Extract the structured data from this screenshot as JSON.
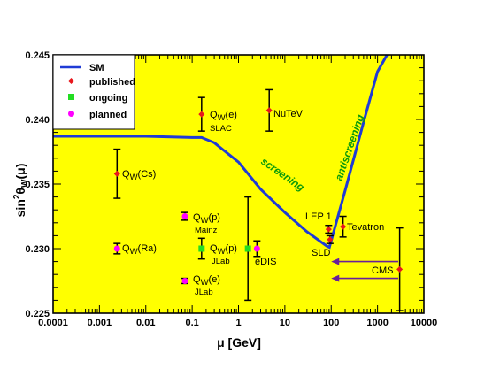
{
  "chart_data": {
    "type": "scatter",
    "xscale": "log",
    "xlim": [
      0.0001,
      10000
    ],
    "ylim": [
      0.225,
      0.245
    ],
    "xlabel": "μ [GeV]",
    "ylabel": {
      "main": "sin",
      "sup": "2",
      "theta": "θ",
      "sub": "W",
      "arg": "(μ)"
    },
    "xticks": [
      {
        "v": 0.0001,
        "label": "0.0001"
      },
      {
        "v": 0.001,
        "label": "0.001"
      },
      {
        "v": 0.01,
        "label": "0.01"
      },
      {
        "v": 0.1,
        "label": "0.1"
      },
      {
        "v": 1,
        "label": "1"
      },
      {
        "v": 10,
        "label": "10"
      },
      {
        "v": 100,
        "label": "100"
      },
      {
        "v": 1000,
        "label": "1000"
      },
      {
        "v": 10000,
        "label": "10000"
      }
    ],
    "yticks": [
      {
        "v": 0.225,
        "label": "0.225"
      },
      {
        "v": 0.23,
        "label": "0.230"
      },
      {
        "v": 0.235,
        "label": "0.235"
      },
      {
        "v": 0.24,
        "label": "0.240"
      },
      {
        "v": 0.245,
        "label": "0.245"
      }
    ],
    "background": "#ffff00",
    "legend": {
      "position": "top-left",
      "entries": [
        {
          "label": "SM",
          "kind": "line",
          "color": "#1f3bd6"
        },
        {
          "label": "published",
          "kind": "point",
          "color": "#e8171d"
        },
        {
          "label": "ongoing",
          "kind": "point",
          "color": "#22dd22"
        },
        {
          "label": "planned",
          "kind": "point",
          "color": "#ff00ff"
        }
      ]
    },
    "sm_curve": {
      "color": "#1f3bd6",
      "points": [
        [
          0.0001,
          0.2387
        ],
        [
          0.001,
          0.2387
        ],
        [
          0.01,
          0.2387
        ],
        [
          0.1,
          0.2386
        ],
        [
          0.16,
          0.2386
        ],
        [
          0.3,
          0.2382
        ],
        [
          1.0,
          0.2367
        ],
        [
          3.0,
          0.2346
        ],
        [
          10.0,
          0.2328
        ],
        [
          30.0,
          0.2313
        ],
        [
          80.0,
          0.2302
        ],
        [
          91.2,
          0.2301
        ],
        [
          200.0,
          0.2345
        ],
        [
          500.0,
          0.2398
        ],
        [
          1000.0,
          0.2437
        ],
        [
          1600.0,
          0.2452
        ]
      ]
    },
    "measurements": [
      {
        "name": "Q_W(Cs)",
        "x": 0.0024,
        "y": 0.2358,
        "err": 0.0019,
        "status": "published"
      },
      {
        "name": "Q_W(Ra)",
        "x": 0.0024,
        "y": 0.23,
        "err": 0.0004,
        "status": "planned"
      },
      {
        "name": "Q_W(e) SLAC",
        "x": 0.16,
        "y": 0.2404,
        "err": 0.0013,
        "status": "published"
      },
      {
        "name": "NuTeV",
        "x": 4.6,
        "y": 0.2407,
        "err": 0.0016,
        "status": "published"
      },
      {
        "name": "Q_W(p) Mainz",
        "x": 0.07,
        "y": 0.2325,
        "err": 0.0003,
        "status": "planned"
      },
      {
        "name": "Q_W(p) JLab",
        "x": 0.16,
        "y": 0.23,
        "err": 0.0008,
        "status": "ongoing"
      },
      {
        "name": "Q_W(e) JLab",
        "x": 0.07,
        "y": 0.2275,
        "err": 0.0002,
        "status": "planned"
      },
      {
        "name": "eDIS (ongoing)",
        "x": 1.6,
        "y": 0.23,
        "err": 0.004,
        "status": "ongoing"
      },
      {
        "name": "eDIS (planned)",
        "x": 2.5,
        "y": 0.23,
        "err": 0.0006,
        "status": "planned"
      },
      {
        "name": "LEP 1",
        "x": 88,
        "y": 0.2315,
        "err": 0.0003,
        "status": "published"
      },
      {
        "name": "SLD",
        "x": 94,
        "y": 0.2307,
        "err": 0.0003,
        "status": "published"
      },
      {
        "name": "Tevatron",
        "x": 180,
        "y": 0.2317,
        "err": 0.0008,
        "status": "published"
      },
      {
        "name": "CMS",
        "x": 3000,
        "y": 0.2284,
        "err": 0.0032,
        "status": "published"
      }
    ],
    "arrows": [
      {
        "from": [
          2800,
          0.229
        ],
        "to": [
          100,
          0.229
        ],
        "color": "#6a1f9a"
      },
      {
        "from": [
          2800,
          0.2277
        ],
        "to": [
          100,
          0.2277
        ],
        "color": "#6a1f9a"
      }
    ]
  },
  "annotations": {
    "qw_cs": {
      "main": "Q",
      "sub": "W",
      "rest": "(Cs)"
    },
    "qw_ra": {
      "main": "Q",
      "sub": "W",
      "rest": "(Ra)"
    },
    "qw_e_slac": {
      "main": "Q",
      "sub": "W",
      "rest": "(e)",
      "second": "SLAC"
    },
    "nutev": "NuTeV",
    "qw_p_mainz": {
      "main": "Q",
      "sub": "W",
      "rest": "(p)",
      "second": "Mainz"
    },
    "qw_p_jlab": {
      "main": "Q",
      "sub": "W",
      "rest": "(p)",
      "second": "JLab"
    },
    "qw_e_jlab": {
      "main": "Q",
      "sub": "W",
      "rest": "(e)",
      "second": "JLab"
    },
    "edis": "eDIS",
    "lep1": "LEP 1",
    "sld": "SLD",
    "tevatron": "Tevatron",
    "cms": "CMS",
    "screening": "screening",
    "antiscreening": "antiscreening"
  },
  "colors": {
    "published": "#e8171d",
    "ongoing": "#22dd22",
    "planned": "#ff00ff",
    "sm": "#1f3bd6",
    "arrow": "#6a1f9a",
    "annotation_green": "#0a9a0a"
  }
}
